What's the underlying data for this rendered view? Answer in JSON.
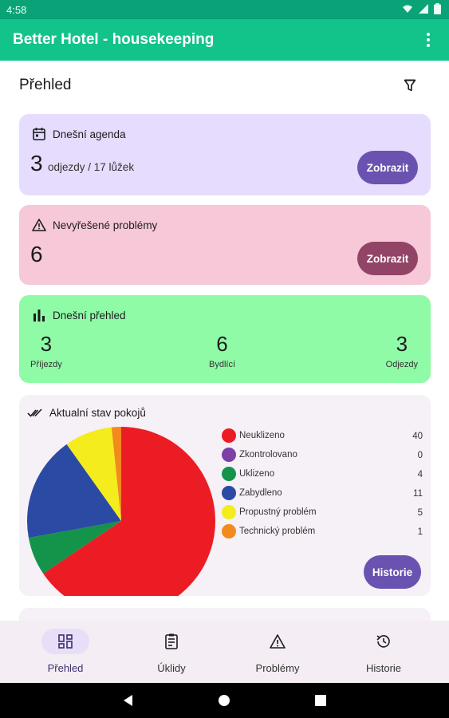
{
  "status_bar": {
    "time": "4:58",
    "icons": [
      "wifi-icon",
      "signal-icon",
      "battery-icon"
    ]
  },
  "app_bar": {
    "title": "Better Hotel - housekeeping",
    "menu_icon": "more-vert-icon"
  },
  "page": {
    "title": "Přehled",
    "filter_icon": "filter-icon"
  },
  "agenda_card": {
    "title": "Dnešní agenda",
    "count": "3",
    "detail": "odjezdy / 17 lůžek",
    "button": "Zobrazit",
    "color": "#e6dcfd",
    "button_color": "#6a53b0"
  },
  "problems_card": {
    "title": "Nevyřešené problémy",
    "count": "6",
    "button": "Zobrazit",
    "color": "#f6c8d8",
    "button_color": "#914466"
  },
  "overview_card": {
    "title": "Dnešní přehled",
    "color": "#8ffba6",
    "stats": [
      {
        "value": "3",
        "label": "Příjezdy"
      },
      {
        "value": "6",
        "label": "Bydlící"
      },
      {
        "value": "3",
        "label": "Odjezdy"
      }
    ]
  },
  "rooms_card": {
    "title": "Aktualní stav pokojů",
    "button": "Historie"
  },
  "chart_data": {
    "type": "pie",
    "title": "Aktualní stav pokojů",
    "categories": [
      "Neuklizeno",
      "Zkontrolovano",
      "Uklizeno",
      "Zabydleno",
      "Propustný problém",
      "Technický problém"
    ],
    "values": [
      40,
      0,
      4,
      11,
      5,
      1
    ],
    "colors": [
      "#ec1c24",
      "#7b3fa6",
      "#14934a",
      "#2b4aa3",
      "#f4ec1c",
      "#f28a1d"
    ],
    "legend": "right"
  },
  "bottom_nav": {
    "items": [
      {
        "label": "Přehled",
        "icon": "dashboard-icon",
        "active": true
      },
      {
        "label": "Úklidy",
        "icon": "checklist-icon",
        "active": false
      },
      {
        "label": "Problémy",
        "icon": "warning-icon",
        "active": false
      },
      {
        "label": "Historie",
        "icon": "history-icon",
        "active": false
      }
    ]
  },
  "system_nav": {
    "icons": [
      "back-icon",
      "home-icon",
      "recents-icon"
    ]
  }
}
